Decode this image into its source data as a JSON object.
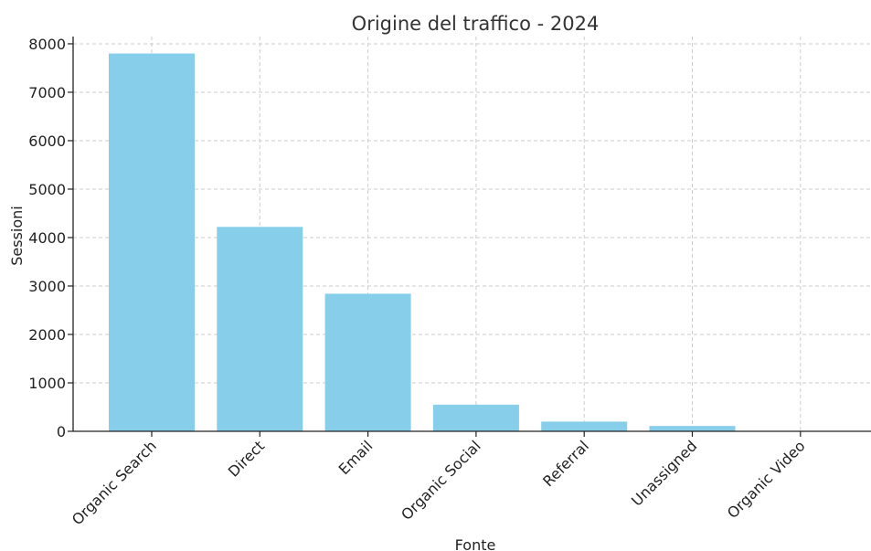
{
  "chart_data": {
    "type": "bar",
    "title": "Origine del traffico - 2024",
    "xlabel": "Fonte",
    "ylabel": "Sessioni",
    "categories": [
      "Organic Search",
      "Direct",
      "Email",
      "Organic Social",
      "Referral",
      "Unassigned",
      "Organic Video"
    ],
    "values": [
      7800,
      4220,
      2840,
      550,
      200,
      110,
      5
    ],
    "ylim": [
      0,
      8150
    ],
    "yticks": [
      0,
      1000,
      2000,
      3000,
      4000,
      5000,
      6000,
      7000,
      8000
    ],
    "grid": true,
    "bar_color": "#87ceeb",
    "legend": "none"
  }
}
